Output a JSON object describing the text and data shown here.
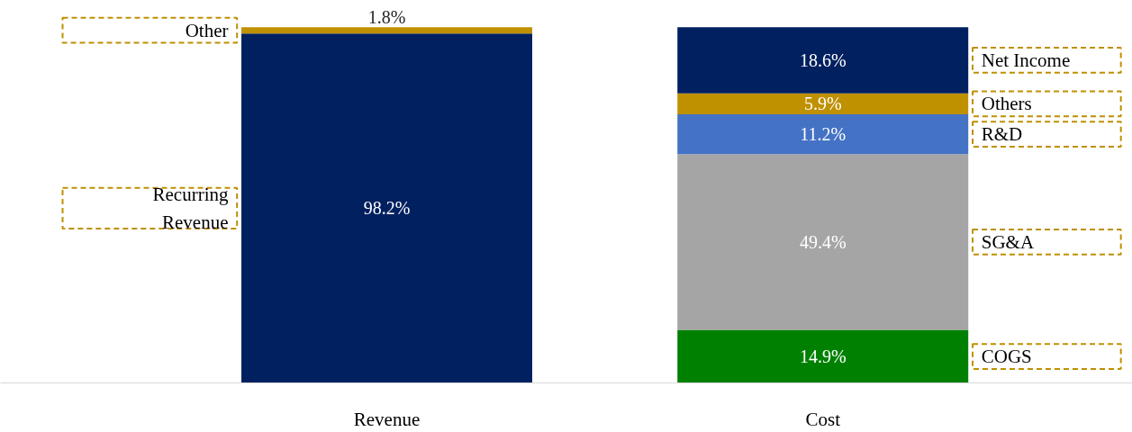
{
  "chart_data": {
    "type": "bar",
    "stacked": true,
    "categories": [
      "Revenue",
      "Cost"
    ],
    "series": [
      {
        "name": "Recurring Revenue",
        "color": "#002060",
        "values": [
          98.2,
          null
        ],
        "value_labels": [
          "98.2%",
          null
        ]
      },
      {
        "name": "Other",
        "color": "#bf9000",
        "values": [
          1.8,
          null
        ],
        "value_labels": [
          "1.8%",
          null
        ]
      },
      {
        "name": "COGS",
        "color": "#008000",
        "values": [
          null,
          14.9
        ],
        "value_labels": [
          null,
          "14.9%"
        ]
      },
      {
        "name": "SG&A",
        "color": "#a5a5a5",
        "values": [
          null,
          49.4
        ],
        "value_labels": [
          null,
          "49.4%"
        ]
      },
      {
        "name": "R&D",
        "color": "#4472c4",
        "values": [
          null,
          11.2
        ],
        "value_labels": [
          null,
          "11.2%"
        ]
      },
      {
        "name": "Others",
        "color": "#bf9000",
        "values": [
          null,
          5.9
        ],
        "value_labels": [
          null,
          "5.9%"
        ]
      },
      {
        "name": "Net Income",
        "color": "#002060",
        "values": [
          null,
          18.6
        ],
        "value_labels": [
          null,
          "18.6%"
        ]
      }
    ]
  }
}
